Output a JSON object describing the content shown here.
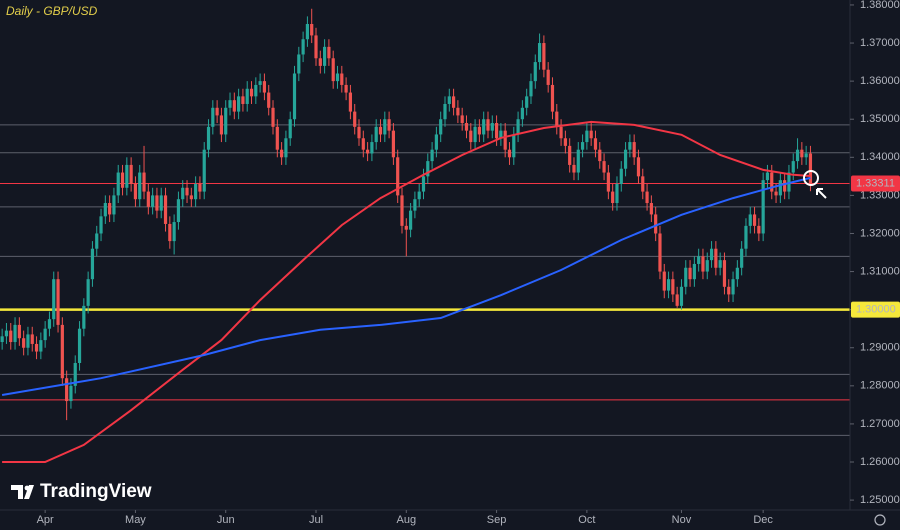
{
  "chart_data": {
    "type": "candlestick",
    "title": "Daily - GBP/USD",
    "logo": "TradingView",
    "up_color": "#26a69a",
    "down_color": "#ef5350",
    "xlim": [
      -0.5,
      197.2
    ],
    "ylim": [
      1.2474,
      1.3813
    ],
    "xticks": [
      {
        "value": 10,
        "label": "Apr"
      },
      {
        "value": 31,
        "label": "May"
      },
      {
        "value": 52,
        "label": "Jun"
      },
      {
        "value": 73,
        "label": "Jul"
      },
      {
        "value": 94,
        "label": "Aug"
      },
      {
        "value": 115,
        "label": "Sep"
      },
      {
        "value": 136,
        "label": "Oct"
      },
      {
        "value": 158,
        "label": "Nov"
      },
      {
        "value": 177,
        "label": "Dec"
      }
    ],
    "yticks": [
      {
        "value": 1.25,
        "label": "1.25000"
      },
      {
        "value": 1.26,
        "label": "1.26000"
      },
      {
        "value": 1.27,
        "label": "1.27000"
      },
      {
        "value": 1.28,
        "label": "1.28000"
      },
      {
        "value": 1.29,
        "label": "1.29000"
      },
      {
        "value": 1.3,
        "label": "1.30000"
      },
      {
        "value": 1.31,
        "label": "1.31000"
      },
      {
        "value": 1.32,
        "label": "1.32000"
      },
      {
        "value": 1.33,
        "label": "1.33000"
      },
      {
        "value": 1.34,
        "label": "1.34000"
      },
      {
        "value": 1.35,
        "label": "1.35000"
      },
      {
        "value": 1.36,
        "label": "1.36000"
      },
      {
        "value": 1.37,
        "label": "1.37000"
      },
      {
        "value": 1.38,
        "label": "1.38000"
      }
    ],
    "open": [
      1.2915,
      1.293,
      1.2945,
      1.2915,
      1.296,
      1.2925,
      1.29,
      1.2935,
      1.291,
      1.289,
      1.292,
      1.295,
      1.2975,
      1.308,
      1.296,
      1.282,
      1.276,
      1.28,
      1.286,
      1.295,
      1.301,
      1.308,
      1.316,
      1.32,
      1.3245,
      1.328,
      1.325,
      1.33,
      1.336,
      1.332,
      1.338,
      1.333,
      1.329,
      1.336,
      1.331,
      1.327,
      1.33,
      1.326,
      1.33,
      1.3225,
      1.318,
      1.323,
      1.329,
      1.332,
      1.33,
      1.329,
      1.333,
      1.331,
      1.342,
      1.348,
      1.353,
      1.351,
      1.346,
      1.353,
      1.355,
      1.352,
      1.356,
      1.354,
      1.358,
      1.356,
      1.359,
      1.36,
      1.357,
      1.353,
      1.348,
      1.342,
      1.34,
      1.345,
      1.35,
      1.362,
      1.367,
      1.371,
      1.375,
      1.372,
      1.366,
      1.364,
      1.369,
      1.366,
      1.36,
      1.362,
      1.359,
      1.357,
      1.352,
      1.348,
      1.345,
      1.342,
      1.341,
      1.344,
      1.348,
      1.346,
      1.35,
      1.347,
      1.34,
      1.33,
      1.322,
      1.321,
      1.326,
      1.329,
      1.331,
      1.335,
      1.339,
      1.342,
      1.346,
      1.35,
      1.354,
      1.356,
      1.353,
      1.351,
      1.349,
      1.347,
      1.344,
      1.348,
      1.346,
      1.35,
      1.347,
      1.349,
      1.345,
      1.347,
      1.342,
      1.34,
      1.346,
      1.35,
      1.353,
      1.356,
      1.36,
      1.365,
      1.37,
      1.363,
      1.359,
      1.352,
      1.348,
      1.345,
      1.343,
      1.338,
      1.336,
      1.342,
      1.344,
      1.347,
      1.345,
      1.342,
      1.339,
      1.336,
      1.331,
      1.328,
      1.333,
      1.337,
      1.342,
      1.344,
      1.34,
      1.335,
      1.331,
      1.328,
      1.325,
      1.32,
      1.31,
      1.305,
      1.308,
      1.304,
      1.301,
      1.306,
      1.311,
      1.308,
      1.312,
      1.314,
      1.31,
      1.313,
      1.316,
      1.311,
      1.313,
      1.306,
      1.304,
      1.308,
      1.311,
      1.316,
      1.322,
      1.325,
      1.322,
      1.32,
      1.334,
      1.336,
      1.331,
      1.33,
      1.334,
      1.331,
      1.336,
      1.339,
      1.342,
      1.34,
      1.341
    ],
    "high": [
      1.295,
      1.2965,
      1.2965,
      1.298,
      1.298,
      1.2945,
      1.2955,
      1.2955,
      1.293,
      1.294,
      1.297,
      1.2995,
      1.31,
      1.31,
      1.298,
      1.284,
      1.282,
      1.288,
      1.297,
      1.303,
      1.31,
      1.318,
      1.322,
      1.3265,
      1.33,
      1.33,
      1.332,
      1.338,
      1.338,
      1.34,
      1.34,
      1.335,
      1.338,
      1.343,
      1.333,
      1.332,
      1.332,
      1.332,
      1.332,
      1.3245,
      1.325,
      1.331,
      1.334,
      1.334,
      1.332,
      1.335,
      1.335,
      1.344,
      1.35,
      1.355,
      1.355,
      1.353,
      1.355,
      1.357,
      1.357,
      1.358,
      1.358,
      1.36,
      1.36,
      1.361,
      1.362,
      1.362,
      1.359,
      1.355,
      1.35,
      1.344,
      1.347,
      1.352,
      1.364,
      1.369,
      1.373,
      1.377,
      1.379,
      1.374,
      1.368,
      1.371,
      1.371,
      1.368,
      1.364,
      1.364,
      1.361,
      1.359,
      1.354,
      1.35,
      1.347,
      1.344,
      1.346,
      1.35,
      1.35,
      1.352,
      1.352,
      1.349,
      1.342,
      1.332,
      1.324,
      1.328,
      1.331,
      1.333,
      1.337,
      1.341,
      1.344,
      1.348,
      1.352,
      1.356,
      1.358,
      1.358,
      1.355,
      1.353,
      1.351,
      1.349,
      1.35,
      1.35,
      1.352,
      1.352,
      1.351,
      1.351,
      1.349,
      1.349,
      1.344,
      1.348,
      1.352,
      1.355,
      1.358,
      1.362,
      1.367,
      1.3725,
      1.372,
      1.365,
      1.361,
      1.354,
      1.35,
      1.347,
      1.345,
      1.34,
      1.344,
      1.346,
      1.349,
      1.349,
      1.347,
      1.344,
      1.341,
      1.338,
      1.333,
      1.335,
      1.339,
      1.344,
      1.346,
      1.346,
      1.342,
      1.337,
      1.333,
      1.33,
      1.327,
      1.322,
      1.312,
      1.31,
      1.31,
      1.306,
      1.308,
      1.313,
      1.313,
      1.314,
      1.316,
      1.316,
      1.315,
      1.318,
      1.318,
      1.315,
      1.315,
      1.308,
      1.31,
      1.313,
      1.318,
      1.324,
      1.327,
      1.327,
      1.324,
      1.336,
      1.338,
      1.338,
      1.333,
      1.336,
      1.336,
      1.338,
      1.341,
      1.345,
      1.344,
      1.343,
      1.343
    ],
    "low": [
      1.2895,
      1.291,
      1.2895,
      1.2895,
      1.2905,
      1.288,
      1.288,
      1.289,
      1.287,
      1.287,
      1.29,
      1.293,
      1.2955,
      1.294,
      1.28,
      1.271,
      1.274,
      1.278,
      1.284,
      1.293,
      1.299,
      1.306,
      1.314,
      1.318,
      1.3225,
      1.323,
      1.323,
      1.328,
      1.33,
      1.33,
      1.331,
      1.327,
      1.327,
      1.329,
      1.325,
      1.325,
      1.324,
      1.324,
      1.3205,
      1.316,
      1.3145,
      1.321,
      1.327,
      1.328,
      1.327,
      1.327,
      1.329,
      1.329,
      1.34,
      1.346,
      1.349,
      1.344,
      1.344,
      1.351,
      1.35,
      1.35,
      1.352,
      1.352,
      1.354,
      1.354,
      1.357,
      1.355,
      1.351,
      1.346,
      1.34,
      1.338,
      1.338,
      1.343,
      1.348,
      1.36,
      1.365,
      1.369,
      1.37,
      1.364,
      1.362,
      1.362,
      1.364,
      1.358,
      1.358,
      1.357,
      1.355,
      1.35,
      1.346,
      1.343,
      1.34,
      1.339,
      1.339,
      1.342,
      1.344,
      1.344,
      1.345,
      1.338,
      1.328,
      1.32,
      1.314,
      1.319,
      1.324,
      1.327,
      1.329,
      1.333,
      1.337,
      1.34,
      1.344,
      1.348,
      1.352,
      1.351,
      1.349,
      1.347,
      1.345,
      1.342,
      1.342,
      1.344,
      1.344,
      1.345,
      1.345,
      1.343,
      1.343,
      1.34,
      1.338,
      1.338,
      1.344,
      1.348,
      1.351,
      1.354,
      1.358,
      1.363,
      1.361,
      1.357,
      1.35,
      1.346,
      1.343,
      1.341,
      1.336,
      1.334,
      1.334,
      1.34,
      1.342,
      1.343,
      1.34,
      1.337,
      1.334,
      1.329,
      1.326,
      1.326,
      1.331,
      1.335,
      1.34,
      1.338,
      1.333,
      1.329,
      1.326,
      1.323,
      1.318,
      1.308,
      1.303,
      1.303,
      1.302,
      1.3005,
      1.3,
      1.304,
      1.306,
      1.306,
      1.31,
      1.308,
      1.308,
      1.311,
      1.309,
      1.309,
      1.304,
      1.302,
      1.302,
      1.306,
      1.309,
      1.314,
      1.32,
      1.32,
      1.318,
      1.318,
      1.332,
      1.329,
      1.328,
      1.328,
      1.329,
      1.329,
      1.334,
      1.337,
      1.338,
      1.338,
      1.3311
    ],
    "close": [
      1.293,
      1.2945,
      1.2915,
      1.296,
      1.2925,
      1.29,
      1.2935,
      1.291,
      1.289,
      1.292,
      1.295,
      1.2975,
      1.308,
      1.296,
      1.282,
      1.276,
      1.28,
      1.286,
      1.295,
      1.301,
      1.308,
      1.316,
      1.32,
      1.3245,
      1.328,
      1.325,
      1.33,
      1.336,
      1.332,
      1.338,
      1.333,
      1.329,
      1.336,
      1.331,
      1.327,
      1.33,
      1.326,
      1.33,
      1.3225,
      1.318,
      1.323,
      1.329,
      1.332,
      1.33,
      1.329,
      1.333,
      1.331,
      1.342,
      1.348,
      1.353,
      1.351,
      1.346,
      1.353,
      1.355,
      1.352,
      1.356,
      1.354,
      1.358,
      1.356,
      1.359,
      1.36,
      1.357,
      1.353,
      1.348,
      1.342,
      1.34,
      1.345,
      1.35,
      1.362,
      1.367,
      1.371,
      1.375,
      1.372,
      1.366,
      1.364,
      1.369,
      1.366,
      1.36,
      1.362,
      1.359,
      1.357,
      1.352,
      1.348,
      1.345,
      1.342,
      1.341,
      1.344,
      1.348,
      1.346,
      1.35,
      1.347,
      1.34,
      1.33,
      1.322,
      1.321,
      1.326,
      1.329,
      1.331,
      1.335,
      1.339,
      1.342,
      1.346,
      1.35,
      1.354,
      1.356,
      1.353,
      1.351,
      1.349,
      1.347,
      1.344,
      1.348,
      1.346,
      1.35,
      1.347,
      1.349,
      1.345,
      1.347,
      1.342,
      1.34,
      1.346,
      1.35,
      1.353,
      1.356,
      1.36,
      1.365,
      1.37,
      1.363,
      1.359,
      1.352,
      1.348,
      1.345,
      1.343,
      1.338,
      1.336,
      1.342,
      1.344,
      1.347,
      1.345,
      1.342,
      1.339,
      1.336,
      1.331,
      1.328,
      1.333,
      1.337,
      1.342,
      1.344,
      1.34,
      1.335,
      1.331,
      1.328,
      1.325,
      1.32,
      1.31,
      1.305,
      1.308,
      1.304,
      1.301,
      1.306,
      1.311,
      1.308,
      1.312,
      1.314,
      1.31,
      1.313,
      1.316,
      1.311,
      1.313,
      1.306,
      1.304,
      1.308,
      1.311,
      1.316,
      1.322,
      1.325,
      1.322,
      1.32,
      1.334,
      1.336,
      1.331,
      1.33,
      1.334,
      1.331,
      1.336,
      1.339,
      1.342,
      1.34,
      1.341,
      1.3331
    ],
    "series": [
      {
        "color": "#f23645",
        "x": [
          0,
          10,
          19,
          30,
          42,
          51,
          60,
          70,
          79,
          88,
          98,
          107,
          116,
          126,
          137,
          147,
          158,
          167,
          177,
          184,
          188
        ],
        "values": [
          1.26,
          1.26,
          1.2645,
          1.2736,
          1.2842,
          1.292,
          1.3025,
          1.313,
          1.3222,
          1.3293,
          1.3354,
          1.3406,
          1.3451,
          1.3477,
          1.3493,
          1.3485,
          1.3459,
          1.3406,
          1.3367,
          1.3354,
          1.3351
        ]
      },
      {
        "color": "#2962ff",
        "x": [
          0,
          23,
          47,
          60,
          74,
          88,
          102,
          116,
          130,
          144,
          158,
          170,
          181,
          188
        ],
        "values": [
          1.2776,
          1.282,
          1.2881,
          1.292,
          1.2947,
          1.296,
          1.2978,
          1.3038,
          1.3104,
          1.3183,
          1.3249,
          1.3293,
          1.3327,
          1.3346
        ]
      }
    ],
    "levels": [
      {
        "value": 1.3485,
        "color": "#5d606b"
      },
      {
        "value": 1.3412,
        "color": "#5d606b"
      },
      {
        "value": 1.327,
        "color": "#5d606b"
      },
      {
        "value": 1.314,
        "color": "#5d606b"
      },
      {
        "value": 1.283,
        "color": "#5d606b"
      },
      {
        "value": 1.267,
        "color": "#5d606b"
      },
      {
        "value": 1.2763,
        "color": "#f23645"
      },
      {
        "value": 1.3,
        "label": "1.30000",
        "color": "#f5e83b"
      },
      {
        "value": 1.33311,
        "label": "1.33311",
        "color": "#f23645"
      }
    ]
  }
}
